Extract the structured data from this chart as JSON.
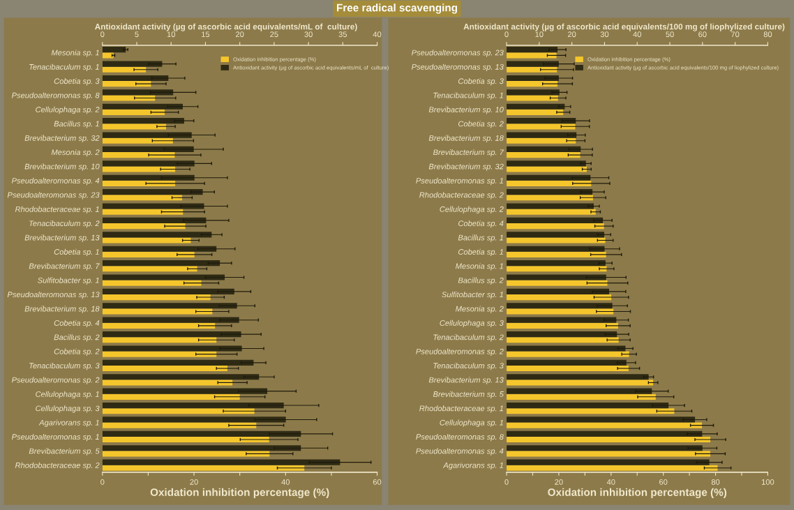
{
  "chart_data": [
    {
      "type": "bar",
      "orientation": "horizontal",
      "title": "Free radical scavenging",
      "categories": [
        "Mesonia sp. 1",
        "Tenacibaculum sp. 1",
        "Cobetia sp. 3",
        "Pseudoalteromonas sp. 8",
        "Cellulophaga sp. 2",
        "Bacillus sp. 1",
        "Brevibacterium sp. 32",
        "Mesonia sp. 2",
        "Brevibacterium sp. 10",
        "Pseudoalteromonas sp. 4",
        "Pseudoalteromonas sp. 23",
        "Rhodobacteraceae sp. 1",
        "Tenacibaculum sp. 2",
        "Brevibacterium sp. 13",
        "Cobetia sp. 1",
        "Brevibacterium sp. 7",
        "Sulfitobacter sp. 1",
        "Pseudoalteromonas sp. 13",
        "Brevibacterium sp. 18",
        "Cobetia sp. 4",
        "Bacillus sp. 2",
        "Cobetia sp. 2",
        "Tenacibaculum sp. 3",
        "Pseudoalteromonas sp. 2",
        "Cellulophaga sp. 1",
        "Cellulophaga sp. 3",
        "Agarivorans sp. 1",
        "Pseudoalteromonas sp. 1",
        "Brevibacterium sp. 5",
        "Rhodobacteraceae sp. 2"
      ],
      "series": [
        {
          "name": "Antioxidant activity (µg of ascorbic acid equivalents/mL of  culture)",
          "color": "#2e2a14",
          "axis": "x2",
          "values": [
            3.4,
            8.7,
            9.6,
            10.3,
            11.7,
            11.9,
            13.0,
            13.3,
            13.4,
            13.4,
            14.6,
            14.8,
            15.1,
            15.9,
            16.6,
            17.1,
            17.8,
            19.2,
            19.6,
            19.9,
            20.2,
            20.3,
            22.0,
            22.8,
            24.0,
            26.4,
            26.7,
            28.9,
            28.9,
            34.6
          ],
          "errors": [
            0.3,
            2.0,
            2.4,
            3.3,
            2.2,
            1.4,
            3.4,
            4.3,
            2.5,
            4.8,
            1.7,
            3.4,
            3.3,
            1.5,
            2.7,
            1.7,
            2.8,
            2.4,
            2.6,
            2.8,
            2.9,
            3.2,
            1.8,
            2.2,
            4.2,
            5.1,
            4.5,
            4.6,
            3.9,
            4.5
          ]
        },
        {
          "name": "Oxidation inhibition percentage (%)",
          "color": "#f5c62c",
          "values": [
            2.4,
            9.5,
            10.6,
            11.5,
            13.6,
            13.9,
            15.4,
            15.8,
            15.9,
            15.9,
            17.4,
            17.6,
            18.1,
            19.3,
            20.1,
            20.7,
            21.6,
            23.6,
            24.0,
            24.6,
            24.9,
            24.9,
            27.3,
            28.4,
            30.0,
            33.2,
            33.6,
            36.4,
            36.5,
            44.1
          ],
          "errors": [
            0.3,
            2.6,
            3.3,
            4.5,
            3.0,
            2.0,
            4.5,
            5.7,
            3.2,
            6.4,
            2.2,
            4.7,
            4.5,
            1.8,
            3.8,
            2.1,
            3.8,
            3.0,
            3.6,
            3.6,
            3.9,
            4.5,
            2.4,
            3.2,
            5.5,
            6.8,
            6.0,
            6.3,
            5.1,
            5.9
          ]
        }
      ],
      "xlabel": "Oxidation inhibition percentage (%)",
      "xlim": [
        0,
        60
      ],
      "xticks": [
        0,
        {
          "value": 10,
          "label": null
        },
        20,
        {
          "value": 30,
          "label": null
        },
        40,
        {
          "value": 50,
          "label": null
        },
        60
      ],
      "x2label": "Antioxidant activity (µg of ascorbic acid equivalents/mL of  culture)",
      "x2lim": [
        0,
        40
      ],
      "x2ticks": [
        0,
        5,
        10,
        15,
        20,
        25,
        30,
        35,
        40
      ],
      "legend": "top right",
      "grid": false
    },
    {
      "type": "bar",
      "orientation": "horizontal",
      "categories": [
        "Pseudoalteromonas sp. 23",
        "Pseudoalteromonas sp. 13",
        "Cobetia sp. 3",
        "Tenacibaculum sp. 1",
        "Brevibacterium sp. 10",
        "Cobetia sp. 2",
        "Brevibacterium sp. 18",
        "Brevibacterium sp. 7",
        "Brevibacterium sp. 32",
        "Pseudoalteromonas sp. 1",
        "Rhodobacteraceae sp. 2",
        "Cellulophaga sp. 2",
        "Cobetia sp. 4",
        "Bacillus sp. 1",
        "Cobetia sp. 1",
        "Mesonia sp. 1",
        "Bacillus sp. 2",
        "Sulfitobacter sp. 1",
        "Mesonia sp. 2",
        "Cellulophaga sp. 3",
        "Tenacibaculum sp. 2",
        "Pseudoalteromonas sp. 2",
        "Tenacibaculum sp. 3",
        "Brevibacterium sp. 13",
        "Brevibacterium sp. 5",
        "Rhodobacteraceae sp. 1",
        "Cellulophaga sp. 1",
        "Pseudoalteromonas sp. 8",
        "Pseudoalteromonas sp. 4",
        "Agarivorans sp. 1"
      ],
      "series": [
        {
          "name": "Antioxidant activity (µg of ascorbic acid equivalents/100 mg of liophylized culture)",
          "color": "#2e2a14",
          "axis": "x2",
          "values": [
            15.6,
            16.0,
            16.0,
            16.2,
            17.8,
            21.2,
            21.4,
            22.7,
            24.3,
            25.7,
            26.3,
            26.7,
            29.5,
            29.9,
            30.0,
            30.3,
            30.5,
            31.4,
            32.4,
            33.6,
            33.8,
            36.4,
            36.7,
            43.5,
            44.5,
            49.6,
            57.7,
            59.9,
            60.0,
            62.1
          ],
          "errors": [
            2.6,
            4.7,
            4.2,
            2.3,
            1.8,
            4.2,
            2.7,
            3.6,
            1.6,
            5.6,
            3.6,
            1.7,
            2.8,
            2.0,
            4.6,
            2.0,
            6.1,
            5.1,
            4.6,
            3.7,
            3.6,
            2.3,
            2.8,
            1.5,
            5.0,
            4.9,
            3.6,
            4.6,
            4.4,
            3.9
          ]
        },
        {
          "name": "Oxidation inhibition percentage (%)",
          "color": "#f5c62c",
          "values": [
            19.1,
            19.3,
            19.5,
            19.7,
            21.7,
            26.3,
            26.5,
            28.2,
            30.7,
            32.4,
            33.1,
            34.1,
            37.3,
            37.8,
            38.1,
            38.3,
            38.6,
            40.1,
            40.9,
            42.7,
            42.9,
            46.9,
            46.7,
            56.1,
            57.1,
            64.2,
            74.8,
            78.0,
            78.0,
            80.8
          ],
          "errors": [
            3.5,
            6.3,
            5.7,
            3.0,
            2.5,
            5.4,
            3.5,
            4.6,
            1.7,
            7.1,
            4.9,
            1.8,
            3.5,
            3.0,
            5.9,
            2.8,
            7.8,
            6.6,
            6.5,
            4.6,
            4.4,
            2.8,
            4.2,
            1.8,
            6.9,
            6.7,
            4.4,
            5.9,
            5.7,
            5.1
          ]
        }
      ],
      "xlabel": "Oxidation inhibition percentage (%)",
      "xlim": [
        0,
        100
      ],
      "xticks": [
        0,
        {
          "value": 10,
          "label": null
        },
        20,
        {
          "value": 30,
          "label": null
        },
        40,
        {
          "value": 50,
          "label": null
        },
        60,
        {
          "value": 70,
          "label": null
        },
        80,
        {
          "value": 90,
          "label": null
        },
        100
      ],
      "x2label": "Antioxidant activity (µg of ascorbic acid equivalents/100 mg of liophylized culture)",
      "x2lim": [
        0,
        80
      ],
      "x2ticks": [
        0,
        10,
        20,
        30,
        40,
        50,
        60,
        70,
        80
      ],
      "legend": "top right",
      "grid": false
    }
  ]
}
